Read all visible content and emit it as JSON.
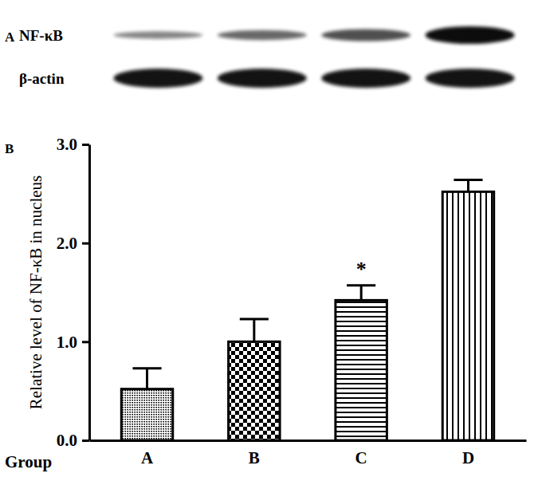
{
  "chart_data": {
    "type": "bar",
    "blot": {
      "panel": "A",
      "rows": [
        "NF-κB",
        "β-actin"
      ]
    },
    "panel": "B",
    "xlabel": "Group",
    "ylabel": "Relative level of NF-κB in nucleus",
    "categories": [
      "A",
      "B",
      "C",
      "D"
    ],
    "values": [
      0.52,
      1.0,
      1.42,
      2.52
    ],
    "errors": [
      0.21,
      0.23,
      0.15,
      0.12
    ],
    "color": "#000000",
    "ylim": [
      0,
      3.0
    ],
    "yticks": [
      {
        "value": 0,
        "label": "0.0"
      },
      {
        "value": 1,
        "label": "1.0"
      },
      {
        "value": 2,
        "label": "2.0"
      },
      {
        "value": 3,
        "label": "3.0"
      }
    ],
    "annotations": [
      {
        "text": "*",
        "category": 2
      }
    ]
  }
}
